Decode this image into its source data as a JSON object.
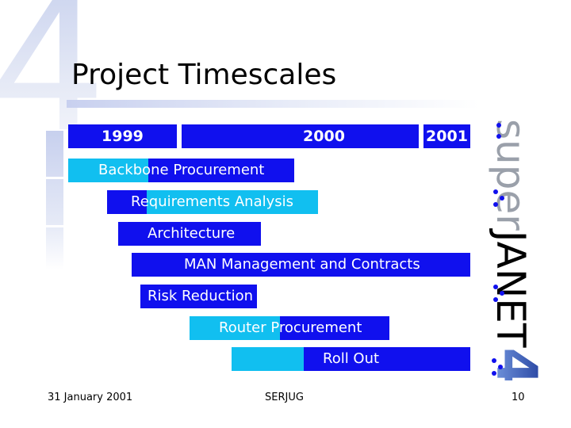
{
  "slide": {
    "number_graphic": "4",
    "title": "Project Timescales"
  },
  "timeline": {
    "years": [
      "1999",
      "2000",
      "2001"
    ]
  },
  "tasks": [
    {
      "label": "Backbone Procurement"
    },
    {
      "label": "Requirements Analysis"
    },
    {
      "label": "Architecture"
    },
    {
      "label": "MAN Management and Contracts"
    },
    {
      "label": "Risk Reduction"
    },
    {
      "label": "Router Procurement"
    },
    {
      "label": "Roll Out"
    }
  ],
  "branding": {
    "logo_text": "superJANET4"
  },
  "footer": {
    "date": "31 January 2001",
    "organization": "SERJUG",
    "page_number": "10"
  },
  "colors": {
    "dark_blue": "#1010ee",
    "light_blue": "#11bff0",
    "title_text": "#000000"
  }
}
